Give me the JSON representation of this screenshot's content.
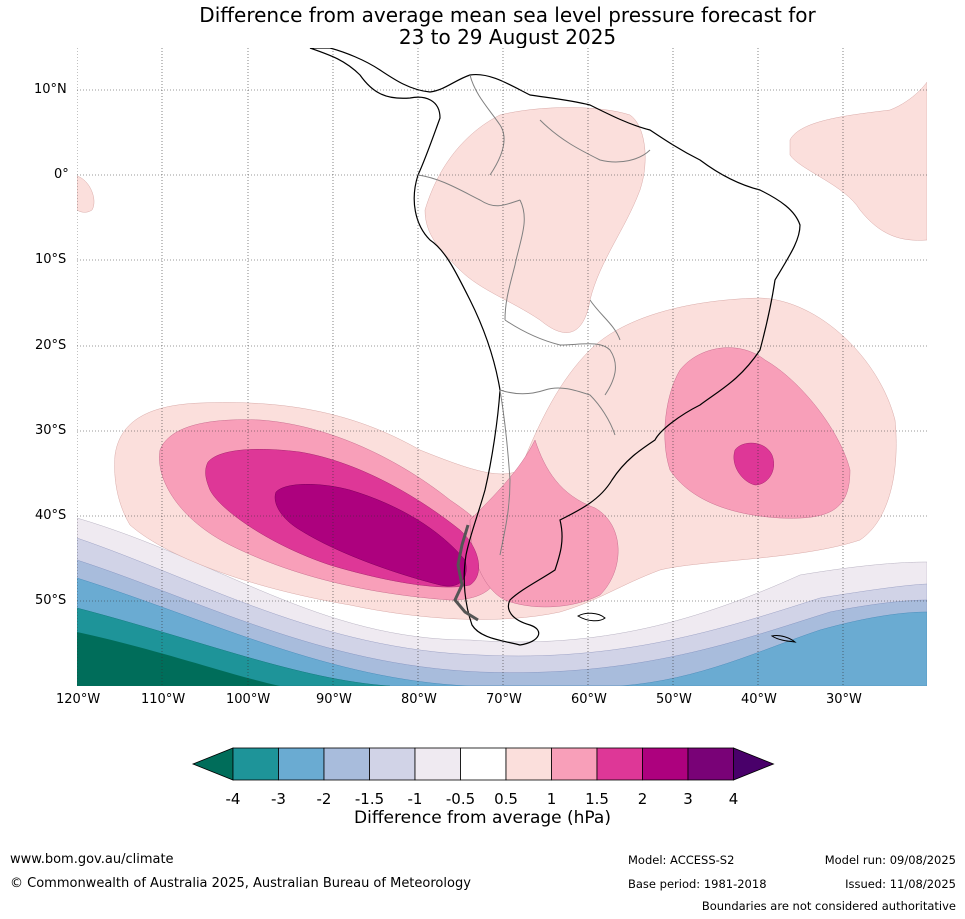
{
  "title": {
    "line1": "Difference from average mean sea level pressure forecast for",
    "line2": "23 to 29 August 2025"
  },
  "axes": {
    "lat_labels": [
      "10°N",
      "0°",
      "10°S",
      "20°S",
      "30°S",
      "40°S",
      "50°S"
    ],
    "lon_labels": [
      "120°W",
      "110°W",
      "100°W",
      "90°W",
      "80°W",
      "70°W",
      "60°W",
      "50°W",
      "40°W",
      "30°W"
    ]
  },
  "colorbar": {
    "title": "Difference from average (hPa)",
    "ticks": [
      "-4",
      "-3",
      "-2",
      "-1.5",
      "-1",
      "-0.5",
      "0.5",
      "1",
      "1.5",
      "2",
      "3",
      "4"
    ],
    "colors": [
      "#1e9499",
      "#6aabd2",
      "#a8bcdc",
      "#d1d3e7",
      "#efeaf1",
      "#ffffff",
      "#fbdfdc",
      "#f89fb9",
      "#de3797",
      "#ad017e",
      "#790277"
    ],
    "under_color": "#006d5a",
    "over_color": "#49006a"
  },
  "footer": {
    "website": "www.bom.gov.au/climate",
    "copyright": "© Commonwealth of Australia 2025, Australian Bureau of Meteorology",
    "model": "Model: ACCESS-S2",
    "base_period": "Base period: 1981-2018",
    "model_run": "Model run: 09/08/2025",
    "issued": "Issued: 11/08/2025",
    "disclaimer": "Boundaries are not considered authoritative"
  }
}
